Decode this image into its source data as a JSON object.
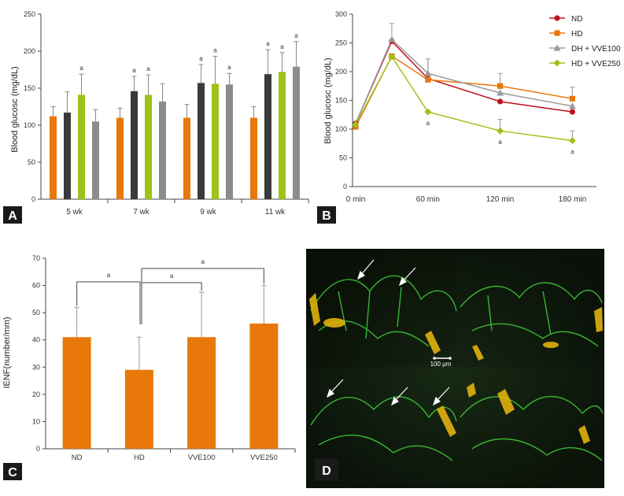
{
  "chart_data": [
    {
      "panel": "A",
      "type": "bar",
      "ylabel": "Blood glucosc (mg/dL)",
      "ylim": [
        0,
        250
      ],
      "yticks": [
        0,
        50,
        100,
        150,
        200,
        250
      ],
      "categories": [
        "5 wk",
        "7 wk",
        "9 wk",
        "11 wk"
      ],
      "series": [
        {
          "color": "#e8780a",
          "values": [
            112,
            110,
            110,
            110
          ],
          "errors": [
            13,
            13,
            18,
            15
          ],
          "sig": [
            "",
            "",
            "",
            ""
          ]
        },
        {
          "color": "#3a3a3a",
          "values": [
            117,
            146,
            157,
            169
          ],
          "errors": [
            28,
            20,
            25,
            33
          ],
          "sig": [
            "",
            "a",
            "a",
            "a"
          ]
        },
        {
          "color": "#9ec21a",
          "values": [
            141,
            141,
            156,
            172
          ],
          "errors": [
            28,
            27,
            37,
            26
          ],
          "sig": [
            "a",
            "a",
            "a",
            "a"
          ]
        },
        {
          "color": "#8c8c8c",
          "values": [
            105,
            132,
            155,
            179
          ],
          "errors": [
            16,
            24,
            15,
            34
          ],
          "sig": [
            "",
            "",
            "a",
            "a"
          ]
        }
      ]
    },
    {
      "panel": "B",
      "type": "line",
      "ylabel": "Blood glucosc (mg/dL)",
      "ylim": [
        0,
        300
      ],
      "yticks": [
        0,
        50,
        100,
        150,
        200,
        250,
        300
      ],
      "x": [
        0,
        30,
        60,
        120,
        180
      ],
      "xticklabels": [
        "0 min",
        "60 min",
        "120 min",
        "180 min"
      ],
      "xtickvalues": [
        0,
        60,
        120,
        180
      ],
      "legend_position": "top-right",
      "series": [
        {
          "name": "ND",
          "color": "#c0111d",
          "marker": "circle",
          "values": [
            110,
            253,
            188,
            148,
            130
          ],
          "errors": [
            0,
            0,
            0,
            0,
            0
          ],
          "sig": [
            "",
            "",
            "",
            "",
            ""
          ]
        },
        {
          "name": "HD",
          "color": "#e8780a",
          "marker": "square",
          "values": [
            104,
            227,
            186,
            175,
            153
          ],
          "errors": [
            0,
            0,
            36,
            22,
            20
          ],
          "sig": [
            "",
            "",
            "",
            "",
            ""
          ]
        },
        {
          "name": "DH + VVE100",
          "color": "#9a9a9a",
          "marker": "triangle",
          "values": [
            110,
            256,
            197,
            163,
            140
          ],
          "errors": [
            0,
            28,
            25,
            0,
            0
          ],
          "sig": [
            "",
            "",
            "",
            "",
            ""
          ]
        },
        {
          "name": "HD + VVE250",
          "color": "#9ec21a",
          "marker": "diamond",
          "values": [
            108,
            226,
            130,
            97,
            80
          ],
          "errors": [
            0,
            0,
            0,
            20,
            17
          ],
          "sig": [
            "",
            "",
            "a",
            "a",
            "a"
          ]
        }
      ]
    },
    {
      "panel": "C",
      "type": "bar",
      "ylabel": "IENF(number/mm)",
      "ylim": [
        0,
        70
      ],
      "yticks": [
        0,
        10,
        20,
        30,
        40,
        50,
        60,
        70
      ],
      "categories": [
        "ND",
        "HD",
        "VVE100",
        "VVE250"
      ],
      "values": [
        41,
        29,
        41,
        46
      ],
      "errors": [
        11,
        12,
        16.5,
        14
      ],
      "color": "#e8780a",
      "significance": [
        {
          "from": "ND",
          "to": "HD",
          "label": "a"
        },
        {
          "from": "HD",
          "to": "VVE100",
          "label": "a"
        },
        {
          "from": "HD",
          "to": "VVE250",
          "label": "a"
        }
      ]
    }
  ],
  "panel_d": {
    "label": "D",
    "scale_bar": "100 μm"
  },
  "panel_labels": {
    "a": "A",
    "b": "B",
    "c": "C"
  }
}
